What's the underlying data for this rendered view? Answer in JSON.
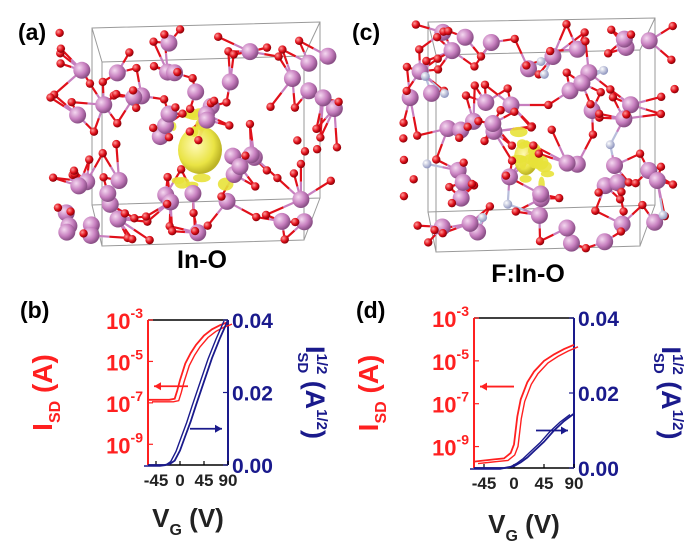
{
  "figure": {
    "panels": {
      "a": {
        "label": "(a)",
        "caption": "In-O"
      },
      "b": {
        "label": "(b)"
      },
      "c": {
        "label": "(c)",
        "caption": "F:In-O"
      },
      "d": {
        "label": "(d)"
      }
    },
    "colors": {
      "indium": "#c77fbf",
      "oxygen": "#e0101a",
      "fluorine": "#b8bedc",
      "density": "#e8e23a",
      "log_axis": "#ff2020",
      "sqrt_axis": "#1a1a8c",
      "cell": "#9a9a9a"
    }
  },
  "chart_data": [
    {
      "panel": "b",
      "type": "line",
      "xlabel": "VG (V)",
      "xlabel_main": "V",
      "xlabel_sub": "G",
      "xlabel_unit": " (V)",
      "xticks": [
        "-45",
        "0",
        "45",
        "90"
      ],
      "xlim": [
        -60,
        90
      ],
      "y_left": {
        "label_main": "I",
        "label_sub": "SD",
        "label_unit": " (A)",
        "scale": "log",
        "ylim_exp": [
          -10,
          -3
        ],
        "ticks": [
          {
            "base": "10",
            "exp": "-3"
          },
          {
            "base": "10",
            "exp": "-5"
          },
          {
            "base": "10",
            "exp": "-7"
          },
          {
            "base": "10",
            "exp": "-9"
          }
        ]
      },
      "y_right": {
        "label_main": "I",
        "label_sup": "1/2",
        "label_sub": "SD",
        "label_unit_a": " (A",
        "label_unit_sup": "1/2",
        "label_unit_b": ")",
        "ylim": [
          0,
          0.04
        ],
        "ticks": [
          "0.04",
          "0.02",
          "0.00"
        ]
      },
      "series": [
        {
          "axis": "left",
          "x": [
            -60,
            -45,
            -30,
            -20,
            -10,
            -5,
            0,
            10,
            20,
            30,
            45,
            60,
            75,
            90
          ],
          "log_y": [
            -6.85,
            -6.85,
            -6.85,
            -6.85,
            -6.8,
            -6.4,
            -5.9,
            -5.1,
            -4.6,
            -4.2,
            -3.75,
            -3.45,
            -3.25,
            -3.1
          ]
        },
        {
          "axis": "right",
          "x": [
            -60,
            -45,
            -30,
            -20,
            -10,
            0,
            10,
            20,
            30,
            45,
            60,
            75,
            90
          ],
          "y": [
            0.0,
            0.0,
            0.0,
            0.0002,
            0.0012,
            0.004,
            0.008,
            0.012,
            0.0165,
            0.023,
            0.0295,
            0.035,
            0.04
          ]
        }
      ]
    },
    {
      "panel": "d",
      "type": "line",
      "xlabel": "VG (V)",
      "xlabel_main": "V",
      "xlabel_sub": "G",
      "xlabel_unit": " (V)",
      "xticks": [
        "-45",
        "0",
        "45",
        "90"
      ],
      "xlim": [
        -60,
        90
      ],
      "y_left": {
        "label_main": "I",
        "label_sub": "SD",
        "label_unit": " (A)",
        "scale": "log",
        "ylim_exp": [
          -10,
          -3
        ],
        "ticks": [
          {
            "base": "10",
            "exp": "-3"
          },
          {
            "base": "10",
            "exp": "-5"
          },
          {
            "base": "10",
            "exp": "-7"
          },
          {
            "base": "10",
            "exp": "-9"
          }
        ]
      },
      "y_right": {
        "label_main": "I",
        "label_sup": "1/2",
        "label_sub": "SD",
        "label_unit_a": " (A",
        "label_unit_sup": "1/2",
        "label_unit_b": ")",
        "ylim": [
          0,
          0.04
        ],
        "ticks": [
          "0.04",
          "0.02",
          "0.00"
        ]
      },
      "series": [
        {
          "axis": "left",
          "x": [
            -60,
            -45,
            -30,
            -15,
            -5,
            0,
            5,
            10,
            20,
            30,
            45,
            60,
            75,
            90
          ],
          "log_y": [
            -9.7,
            -9.65,
            -9.6,
            -9.55,
            -9.3,
            -8.9,
            -7.6,
            -6.8,
            -6.0,
            -5.5,
            -5.0,
            -4.7,
            -4.45,
            -4.25
          ]
        },
        {
          "axis": "right",
          "x": [
            -60,
            -45,
            -30,
            -15,
            0,
            10,
            20,
            30,
            45,
            60,
            75,
            90
          ],
          "y": [
            0.0,
            0.0,
            0.0,
            0.0,
            0.0005,
            0.0015,
            0.0028,
            0.0045,
            0.007,
            0.01,
            0.0125,
            0.0145
          ]
        }
      ]
    }
  ]
}
